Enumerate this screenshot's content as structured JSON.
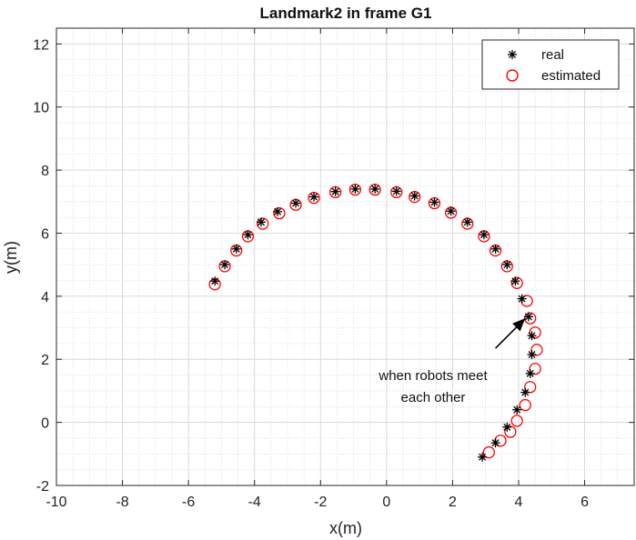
{
  "chart_data": {
    "type": "scatter",
    "title": "Landmark2 in frame G1",
    "xlabel": "x(m)",
    "ylabel": "y(m)",
    "xlim": [
      -10,
      7.5
    ],
    "ylim": [
      -2,
      12.5
    ],
    "xticks": [
      -10,
      -8,
      -6,
      -4,
      -2,
      0,
      2,
      4,
      6
    ],
    "yticks": [
      -2,
      0,
      2,
      4,
      6,
      8,
      10,
      12
    ],
    "grid": true,
    "minor_grid": true,
    "legend_position": "top-right",
    "series": [
      {
        "name": "real",
        "marker": "asterisk",
        "color": "#000000",
        "points": [
          [
            -5.2,
            4.48
          ],
          [
            -4.9,
            5.0
          ],
          [
            -4.55,
            5.5
          ],
          [
            -4.2,
            5.95
          ],
          [
            -3.8,
            6.35
          ],
          [
            -3.3,
            6.68
          ],
          [
            -2.75,
            6.95
          ],
          [
            -2.2,
            7.15
          ],
          [
            -1.55,
            7.32
          ],
          [
            -0.95,
            7.4
          ],
          [
            -0.35,
            7.4
          ],
          [
            0.3,
            7.33
          ],
          [
            0.85,
            7.18
          ],
          [
            1.45,
            6.98
          ],
          [
            1.95,
            6.7
          ],
          [
            2.45,
            6.35
          ],
          [
            2.95,
            5.95
          ],
          [
            3.3,
            5.5
          ],
          [
            3.65,
            5.0
          ],
          [
            3.9,
            4.48
          ],
          [
            4.1,
            3.92
          ],
          [
            4.3,
            3.35
          ],
          [
            4.4,
            2.75
          ],
          [
            4.4,
            2.15
          ],
          [
            4.35,
            1.55
          ],
          [
            4.2,
            0.95
          ],
          [
            3.95,
            0.4
          ],
          [
            3.65,
            -0.15
          ],
          [
            3.3,
            -0.65
          ],
          [
            2.9,
            -1.1
          ]
        ]
      },
      {
        "name": "estimated",
        "marker": "circle",
        "color": "#ff0000",
        "points": [
          [
            -5.2,
            4.38
          ],
          [
            -4.9,
            4.95
          ],
          [
            -4.55,
            5.45
          ],
          [
            -4.2,
            5.9
          ],
          [
            -3.75,
            6.3
          ],
          [
            -3.25,
            6.63
          ],
          [
            -2.75,
            6.9
          ],
          [
            -2.2,
            7.12
          ],
          [
            -1.55,
            7.3
          ],
          [
            -0.95,
            7.38
          ],
          [
            -0.35,
            7.38
          ],
          [
            0.3,
            7.3
          ],
          [
            0.85,
            7.15
          ],
          [
            1.45,
            6.95
          ],
          [
            1.95,
            6.65
          ],
          [
            2.45,
            6.3
          ],
          [
            2.95,
            5.9
          ],
          [
            3.3,
            5.45
          ],
          [
            3.65,
            4.95
          ],
          [
            3.95,
            4.42
          ],
          [
            4.25,
            3.85
          ],
          [
            4.35,
            3.3
          ],
          [
            4.5,
            2.85
          ],
          [
            4.55,
            2.3
          ],
          [
            4.5,
            1.7
          ],
          [
            4.35,
            1.12
          ],
          [
            4.2,
            0.55
          ],
          [
            3.95,
            0.05
          ],
          [
            3.75,
            -0.3
          ],
          [
            3.45,
            -0.58
          ],
          [
            3.1,
            -0.95
          ]
        ]
      }
    ],
    "annotation": {
      "lines": [
        "when robots meet",
        "each other"
      ],
      "arrow_from": [
        3.3,
        2.35
      ],
      "arrow_to": [
        4.2,
        3.3
      ]
    }
  }
}
